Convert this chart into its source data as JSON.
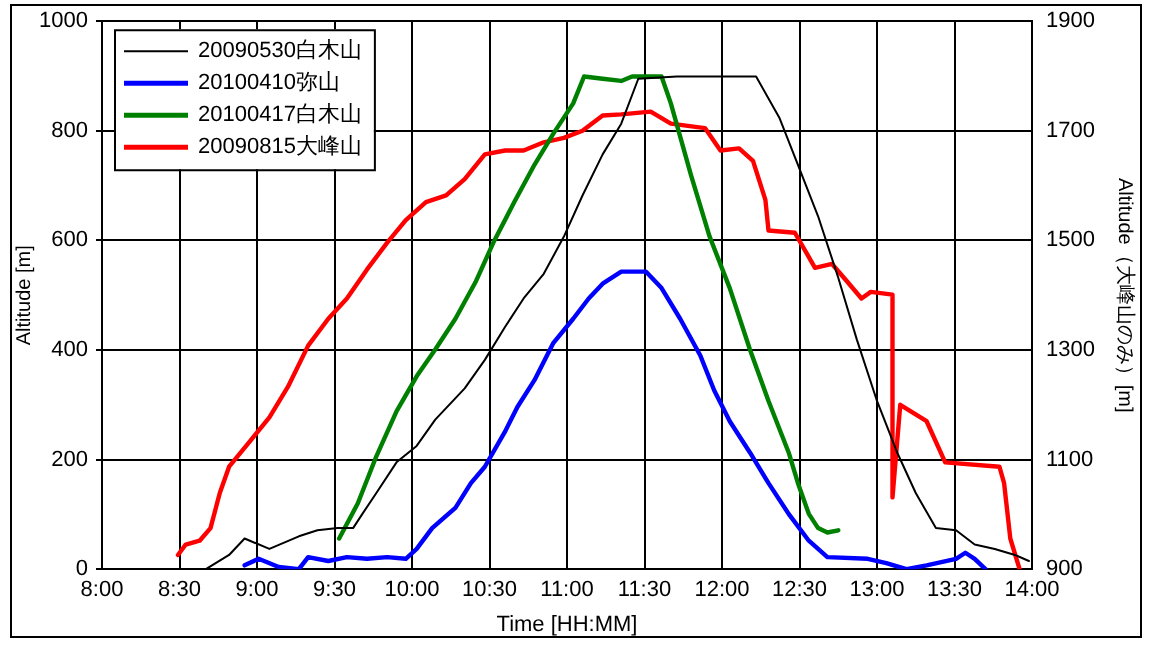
{
  "chart_data": {
    "type": "line",
    "xlabel": "Time [HH:MM]",
    "ylabel": "Altitude [m]",
    "y2label": "Altitude（大峰山のみ）[m]",
    "xlim": [
      8,
      14
    ],
    "xticks": [
      {
        "value": 8,
        "label": "8:00"
      },
      {
        "value": 8.5,
        "label": "8:30"
      },
      {
        "value": 9,
        "label": "9:00"
      },
      {
        "value": 9.5,
        "label": "9:30"
      },
      {
        "value": 10,
        "label": "10:00"
      },
      {
        "value": 10.5,
        "label": "10:30"
      },
      {
        "value": 11,
        "label": "11:00"
      },
      {
        "value": 11.5,
        "label": "11:30"
      },
      {
        "value": 12,
        "label": "12:00"
      },
      {
        "value": 12.5,
        "label": "12:30"
      },
      {
        "value": 13,
        "label": "13:00"
      },
      {
        "value": 13.5,
        "label": "13:30"
      },
      {
        "value": 14,
        "label": "14:00"
      }
    ],
    "ylim": [
      0,
      1000
    ],
    "yticks": [
      0,
      200,
      400,
      600,
      800,
      1000
    ],
    "y2lim": [
      900,
      1900
    ],
    "y2ticks": [
      900,
      1100,
      1300,
      1500,
      1700,
      1900
    ],
    "grid": true,
    "legend": "top left",
    "marker": "none",
    "line_style": "solid",
    "series": [
      {
        "name": "20090530白木山",
        "color": "#000000",
        "x": [
          8.67,
          8.82,
          8.92,
          9.08,
          9.27,
          9.39,
          9.52,
          9.62,
          9.68,
          9.77,
          9.9,
          10.03,
          10.15,
          10.34,
          10.47,
          10.6,
          10.72,
          10.85,
          10.98,
          11.1,
          11.23,
          11.35,
          11.46,
          11.71,
          12.22,
          12.37,
          12.49,
          12.62,
          12.75,
          12.87,
          13.0,
          13.13,
          13.25,
          13.38,
          13.51,
          13.63,
          13.76,
          13.89,
          13.98
        ],
        "values": [
          0,
          26,
          56,
          37,
          60,
          71,
          75,
          75,
          101,
          139,
          195,
          225,
          273,
          330,
          382,
          442,
          494,
          539,
          607,
          682,
          757,
          813,
          895,
          899,
          899,
          824,
          738,
          644,
          532,
          419,
          307,
          213,
          139,
          75,
          71,
          45,
          37,
          26,
          15
        ]
      },
      {
        "name": "20100410弥山",
        "color": "#0000ff",
        "x": [
          8.92,
          9.01,
          9.14,
          9.27,
          9.33,
          9.46,
          9.58,
          9.71,
          9.84,
          9.96,
          10.03,
          10.13,
          10.28,
          10.38,
          10.47,
          10.6,
          10.68,
          10.79,
          10.91,
          11.04,
          11.14,
          11.23,
          11.35,
          11.51,
          11.61,
          11.73,
          11.86,
          11.95,
          12.05,
          12.18,
          12.3,
          12.43,
          12.56,
          12.68,
          12.94,
          13.06,
          13.19,
          13.32,
          13.51,
          13.57,
          13.63,
          13.7
        ],
        "values": [
          7,
          19,
          4,
          0,
          22,
          15,
          22,
          19,
          22,
          19,
          37,
          75,
          112,
          157,
          187,
          251,
          296,
          345,
          412,
          457,
          494,
          521,
          543,
          543,
          513,
          457,
          390,
          326,
          270,
          213,
          157,
          101,
          52,
          22,
          19,
          11,
          0,
          7,
          19,
          30,
          19,
          0
        ]
      },
      {
        "name": "20100417白木山",
        "color": "#008000",
        "x": [
          9.53,
          9.65,
          9.77,
          9.9,
          10.03,
          10.15,
          10.28,
          10.41,
          10.53,
          10.66,
          10.79,
          10.91,
          11.04,
          11.11,
          11.23,
          11.35,
          11.42,
          11.61,
          11.67,
          11.8,
          11.92,
          12.05,
          12.18,
          12.3,
          12.43,
          12.49,
          12.56,
          12.62,
          12.68,
          12.75
        ],
        "values": [
          56,
          120,
          206,
          288,
          352,
          401,
          457,
          524,
          599,
          670,
          738,
          794,
          850,
          899,
          895,
          891,
          899,
          899,
          850,
          719,
          607,
          513,
          401,
          307,
          213,
          157,
          101,
          75,
          67,
          71
        ]
      },
      {
        "name": "20090815大峰山",
        "color": "#ff0000",
        "axis": "y2",
        "x": [
          8.49,
          8.54,
          8.63,
          8.7,
          8.76,
          8.82,
          8.95,
          9.08,
          9.2,
          9.33,
          9.46,
          9.58,
          9.71,
          9.84,
          9.96,
          10.09,
          10.22,
          10.34,
          10.47,
          10.6,
          10.72,
          10.85,
          10.98,
          11.1,
          11.23,
          11.35,
          11.54,
          11.67,
          11.89,
          11.99,
          12.11,
          12.2,
          12.28,
          12.3,
          12.47,
          12.6,
          12.71,
          12.81,
          12.9,
          12.96,
          13.1,
          13.1,
          13.15,
          13.32,
          13.44,
          13.79,
          13.82,
          13.86,
          13.92
        ],
        "values": [
          926,
          945,
          952,
          975,
          1039,
          1087,
          1132,
          1177,
          1233,
          1308,
          1357,
          1394,
          1447,
          1496,
          1537,
          1570,
          1582,
          1612,
          1657,
          1664,
          1664,
          1679,
          1687,
          1700,
          1728,
          1730,
          1735,
          1713,
          1705,
          1664,
          1668,
          1645,
          1574,
          1518,
          1514,
          1450,
          1457,
          1424,
          1394,
          1406,
          1401,
          1031,
          1200,
          1170,
          1095,
          1087,
          1057,
          956,
          900
        ]
      }
    ]
  }
}
